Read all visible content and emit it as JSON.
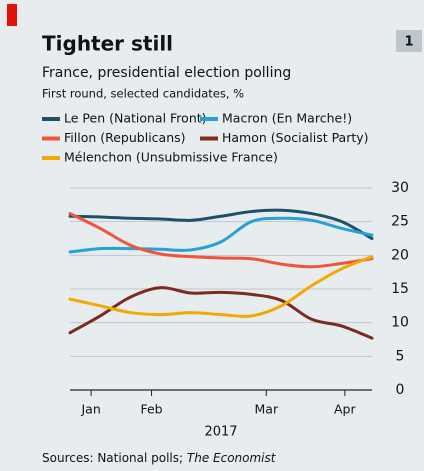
{
  "badge": "1",
  "chart_data": {
    "type": "line",
    "title": "Tighter still",
    "subtitle": "France, presidential election polling",
    "subtitle2": "First round, selected candidates, %",
    "x": [
      0,
      10,
      20,
      30,
      40,
      50,
      60,
      70,
      80,
      90,
      100
    ],
    "xlim": [
      0,
      100
    ],
    "xticks": [
      {
        "value": 7,
        "label": "Jan"
      },
      {
        "value": 27,
        "label": "Feb"
      },
      {
        "value": 65,
        "label": "Mar"
      },
      {
        "value": 91,
        "label": "Apr"
      }
    ],
    "xlabel": "2017",
    "ylim": [
      0,
      30
    ],
    "yticks": [
      0,
      5,
      10,
      15,
      20,
      25,
      30
    ],
    "grid": true,
    "series": [
      {
        "name": "Le Pen (National Front)",
        "color": "#1f5068",
        "values": [
          25.8,
          25.7,
          25.5,
          25.4,
          25.2,
          25.8,
          26.5,
          26.7,
          26.2,
          25,
          22.5
        ]
      },
      {
        "name": "Macron (En Marche!)",
        "color": "#27a0d6",
        "values": [
          20.5,
          21,
          21,
          20.9,
          20.8,
          22,
          25,
          25.5,
          25.2,
          24,
          23
        ]
      },
      {
        "name": "Fillon (Republicans)",
        "color": "#f0553c",
        "values": [
          26.2,
          24,
          21.5,
          20.2,
          19.8,
          19.6,
          19.5,
          18.7,
          18.3,
          18.8,
          19.5
        ]
      },
      {
        "name": "Hamon (Socialist Party)",
        "color": "#7a2c1e",
        "values": [
          8.5,
          11,
          13.8,
          15.2,
          14.4,
          14.5,
          14.2,
          13.3,
          10.5,
          9.5,
          7.7
        ]
      },
      {
        "name": "Mélenchon (Unsubmissive France)",
        "color": "#f2a900",
        "values": [
          13.5,
          12.5,
          11.5,
          11.2,
          11.5,
          11.2,
          11,
          12.5,
          15.5,
          18,
          19.8
        ]
      }
    ],
    "source": "Sources: National polls; ",
    "source_italic": "The Economist"
  }
}
